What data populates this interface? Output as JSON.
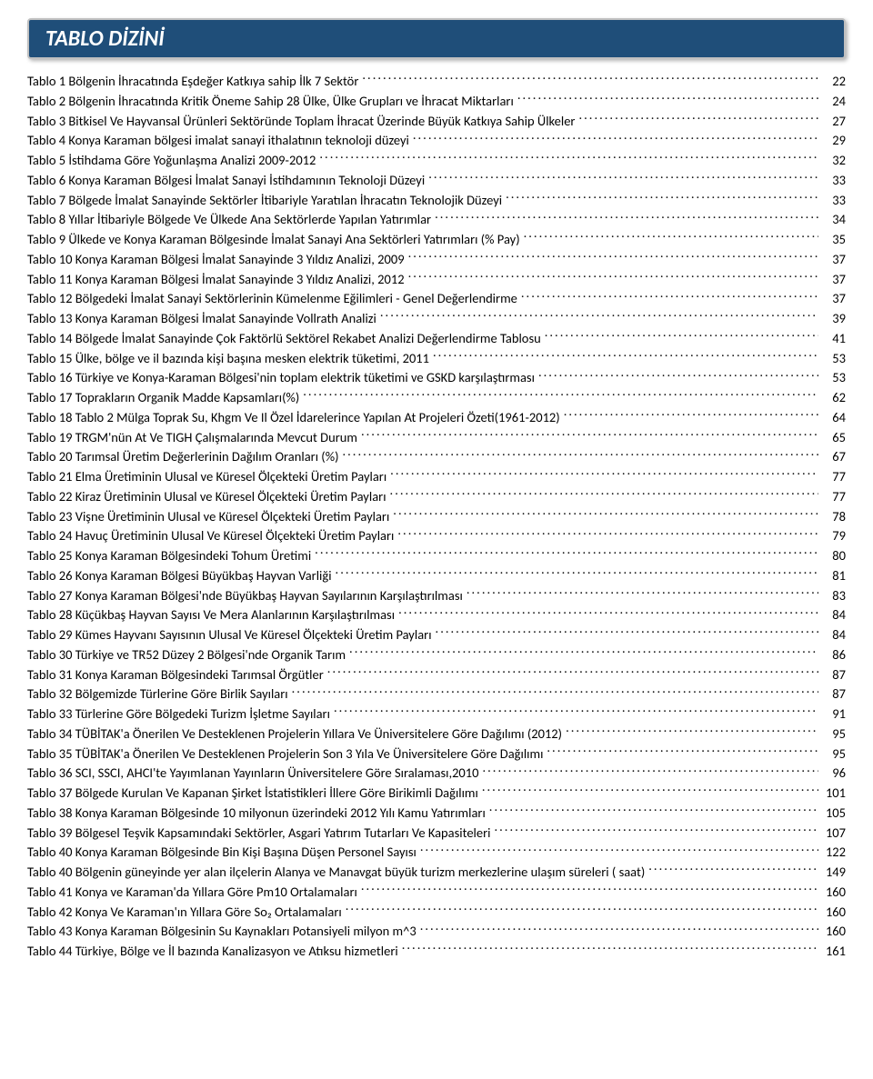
{
  "header": {
    "title": "TABLO DİZİNİ",
    "bg_color": "#1f4e79",
    "text_color": "#ffffff",
    "border_color": "#c0c0c0",
    "title_fontsize": 24
  },
  "toc": {
    "font_family": "Calibri",
    "font_size": 14.5,
    "text_color": "#000000",
    "entries": [
      {
        "label": "Tablo 1 Bölgenin İhracatında Eşdeğer Katkıya sahip İlk 7 Sektör",
        "page": "22"
      },
      {
        "label": "Tablo 2 Bölgenin İhracatında Kritik Öneme Sahip 28 Ülke, Ülke Grupları ve İhracat Miktarları",
        "page": "24"
      },
      {
        "label": "Tablo 3 Bitkisel Ve Hayvansal Ürünleri Sektöründe Toplam İhracat Üzerinde Büyük Katkıya Sahip Ülkeler",
        "page": "27"
      },
      {
        "label": "Tablo 4 Konya Karaman bölgesi imalat sanayi ithalatının teknoloji düzeyi",
        "page": "29"
      },
      {
        "label": "Tablo 5 İstihdama Göre Yoğunlaşma Analizi 2009-2012",
        "page": "32"
      },
      {
        "label": "Tablo 6 Konya Karaman Bölgesi İmalat Sanayi İstihdamının Teknoloji Düzeyi",
        "page": "33"
      },
      {
        "label": "Tablo 7 Bölgede İmalat Sanayinde Sektörler İtibariyle Yaratılan İhracatın Teknolojik Düzeyi",
        "page": "33"
      },
      {
        "label": "Tablo 8 Yıllar İtibariyle Bölgede Ve Ülkede Ana Sektörlerde Yapılan Yatırımlar",
        "page": "34"
      },
      {
        "label": "Tablo 9 Ülkede ve Konya Karaman Bölgesinde İmalat Sanayi Ana Sektörleri Yatırımları (% Pay)",
        "page": "35"
      },
      {
        "label": "Tablo 10 Konya Karaman Bölgesi İmalat Sanayinde 3 Yıldız Analizi, 2009",
        "page": "37"
      },
      {
        "label": "Tablo 11 Konya Karaman Bölgesi İmalat Sanayinde 3 Yıldız Analizi, 2012",
        "page": "37"
      },
      {
        "label": "Tablo 12 Bölgedeki İmalat Sanayi Sektörlerinin Kümelenme Eğilimleri - Genel Değerlendirme",
        "page": "37"
      },
      {
        "label": "Tablo 13 Konya Karaman Bölgesi İmalat Sanayinde Vollrath Analizi",
        "page": "39"
      },
      {
        "label": "Tablo 14 Bölgede İmalat Sanayinde Çok Faktörlü Sektörel Rekabet Analizi Değerlendirme Tablosu",
        "page": "41"
      },
      {
        "label": "Tablo 15 Ülke, bölge ve il bazında kişi başına mesken elektrik tüketimi, 2011",
        "page": "53"
      },
      {
        "label": "Tablo 16 Türkiye ve Konya-Karaman Bölgesi'nin toplam elektrik tüketimi ve GSKD karşılaştırması",
        "page": "53"
      },
      {
        "label": "Tablo 17 Toprakların Organik Madde Kapsamları(%)",
        "page": "62"
      },
      {
        "label": "Tablo 18 Tablo 2 Mülga Toprak Su, Khgm Ve Il Özel İdarelerince Yapılan At Projeleri Özeti(1961-2012)",
        "page": "64"
      },
      {
        "label": "Tablo 19 TRGM'nün At Ve TIGH Çalışmalarında Mevcut Durum",
        "page": "65"
      },
      {
        "label": "Tablo 20 Tarımsal Üretim Değerlerinin Dağılım Oranları (%)",
        "page": "67"
      },
      {
        "label": "Tablo 21 Elma Üretiminin Ulusal ve Küresel Ölçekteki Üretim Payları",
        "page": "77"
      },
      {
        "label": "Tablo 22 Kiraz Üretiminin Ulusal ve Küresel Ölçekteki Üretim Payları",
        "page": "77"
      },
      {
        "label": "Tablo 23 Vişne Üretiminin Ulusal ve Küresel Ölçekteki Üretim Payları",
        "page": "78"
      },
      {
        "label": "Tablo 24 Havuç Üretiminin Ulusal Ve Küresel Ölçekteki Üretim Payları",
        "page": "79"
      },
      {
        "label": "Tablo 25 Konya Karaman Bölgesindeki Tohum Üretimi",
        "page": "80"
      },
      {
        "label": "Tablo 26 Konya Karaman Bölgesi Büyükbaş Hayvan Varliği",
        "page": "81"
      },
      {
        "label": "Tablo 27 Konya Karaman Bölgesi'nde Büyükbaş Hayvan Sayılarının Karşılaştırılması",
        "page": "83"
      },
      {
        "label": "Tablo 28 Küçükbaş Hayvan Sayısı Ve Mera Alanlarının Karşılaştırılması",
        "page": "84"
      },
      {
        "label": "Tablo 29 Kümes Hayvanı Sayısının Ulusal Ve Küresel Ölçekteki Üretim Payları",
        "page": "84"
      },
      {
        "label": "Tablo 30 Türkiye ve TR52 Düzey 2 Bölgesi'nde Organik Tarım",
        "page": "86"
      },
      {
        "label": "Tablo 31 Konya Karaman Bölgesindeki Tarımsal Örgütler",
        "page": "87"
      },
      {
        "label": "Tablo 32 Bölgemizde Türlerine Göre Birlik Sayıları",
        "page": "87"
      },
      {
        "label": "Tablo 33 Türlerine Göre Bölgedeki Turizm İşletme Sayıları",
        "page": "91"
      },
      {
        "label": "Tablo 34 TÜBİTAK'a Önerilen Ve Desteklenen Projelerin Yıllara Ve Üniversitelere Göre Dağılımı (2012)",
        "page": "95"
      },
      {
        "label": "Tablo 35 TÜBİTAK'a Önerilen Ve Desteklenen Projelerin Son 3 Yıla Ve Üniversitelere Göre Dağılımı",
        "page": "95"
      },
      {
        "label": "Tablo 36 SCI, SSCI, AHCI'te Yayımlanan Yayınların Üniversitelere Göre Sıralaması,2010",
        "page": "96"
      },
      {
        "label": "Tablo 37 Bölgede Kurulan Ve Kapanan Şirket İstatistikleri İllere Göre Birikimli Dağılımı",
        "page": "101"
      },
      {
        "label": "Tablo 38 Konya Karaman Bölgesinde 10 milyonun üzerindeki 2012 Yılı Kamu Yatırımları",
        "page": "105"
      },
      {
        "label": "Tablo 39 Bölgesel Teşvik Kapsamındaki Sektörler, Asgari Yatırım Tutarları Ve Kapasiteleri",
        "page": "107"
      },
      {
        "label": "Tablo 40 Konya Karaman Bölgesinde Bin Kişi Başına Düşen Personel Sayısı",
        "page": "122"
      },
      {
        "label": "Tablo 40 Bölgenin güneyinde yer alan ilçelerin Alanya ve Manavgat büyük turizm merkezlerine ulaşım süreleri ( saat)",
        "page": "149"
      },
      {
        "label": "Tablo 41 Konya ve Karaman'da Yıllara Göre Pm10 Ortalamaları",
        "page": "160"
      },
      {
        "label": "Tablo 42 Konya Ve Karaman'ın Yıllara Göre So₂ Ortalamaları",
        "page": "160"
      },
      {
        "label": "Tablo 43 Konya Karaman Bölgesinin Su Kaynakları Potansiyeli milyon m^3",
        "page": "160"
      },
      {
        "label": "Tablo 44 Türkiye, Bölge ve İl bazında Kanalizasyon ve Atıksu hizmetleri",
        "page": "161"
      }
    ]
  }
}
